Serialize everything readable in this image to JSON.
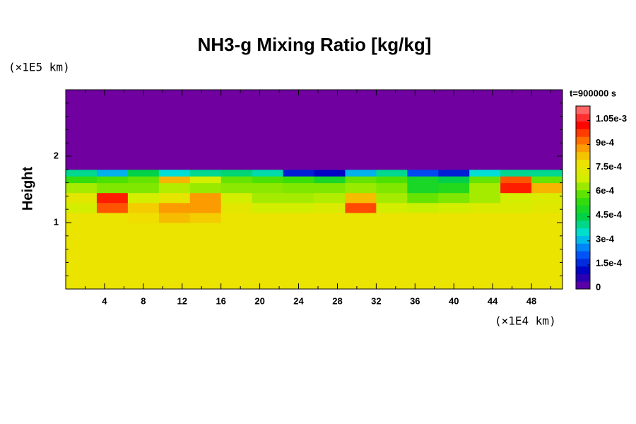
{
  "chart_data": {
    "type": "heatmap",
    "title": "NH3-g Mixing Ratio [kg/kg]",
    "y_label": "Height",
    "y_unit": "(×1E5 km)",
    "x_unit": "(×1E4 km)",
    "time_label": "t=900000 s",
    "xlim": [
      0,
      51.2
    ],
    "ylim": [
      0,
      3.0
    ],
    "xticks": [
      4,
      8,
      12,
      16,
      20,
      24,
      28,
      32,
      36,
      40,
      44,
      48
    ],
    "xminorticks": [
      2,
      6,
      10,
      14,
      18,
      22,
      26,
      30,
      34,
      38,
      42,
      46,
      50
    ],
    "yticks": [
      1,
      2
    ],
    "yminorticks": [
      0.2,
      0.4,
      0.6,
      0.8,
      1.2,
      1.4,
      1.6,
      1.8,
      2.2,
      2.4,
      2.6,
      2.8
    ],
    "x_edges": [
      0,
      3.2,
      6.4,
      9.6,
      12.8,
      16,
      19.2,
      22.4,
      25.6,
      28.8,
      32,
      35.2,
      38.4,
      41.6,
      44.8,
      48,
      51.2
    ],
    "y_edges": [
      0,
      1.0,
      1.15,
      1.3,
      1.45,
      1.6,
      1.7,
      1.8,
      3.0
    ],
    "z": [
      [
        0.00078,
        0.00078,
        0.00078,
        0.00078,
        0.00078,
        0.00078,
        0.00078,
        0.00078,
        0.00078,
        0.00078,
        0.00078,
        0.00078,
        0.00078,
        0.00078,
        0.00078,
        0.00078
      ],
      [
        0.00078,
        0.00078,
        0.0008,
        0.00084,
        0.00082,
        0.00078,
        0.00078,
        0.00078,
        0.00078,
        0.00078,
        0.00078,
        0.00078,
        0.00078,
        0.00078,
        0.00078,
        0.00078
      ],
      [
        0.0007,
        0.00095,
        0.00082,
        0.00088,
        0.00088,
        0.00075,
        0.0007,
        0.0007,
        0.00072,
        0.00096,
        0.0007,
        0.00068,
        0.0007,
        0.00072,
        0.00072,
        0.00074
      ],
      [
        0.00075,
        0.001,
        0.0007,
        0.00076,
        0.00088,
        0.0007,
        0.00065,
        0.00065,
        0.00066,
        0.00084,
        0.00065,
        0.0006,
        0.00062,
        0.00065,
        0.0007,
        0.00072
      ],
      [
        0.00065,
        0.00062,
        0.00062,
        0.00066,
        0.00064,
        0.00063,
        0.00063,
        0.00062,
        0.00062,
        0.00064,
        0.00062,
        0.0005,
        0.00052,
        0.00065,
        0.001,
        0.00085
      ],
      [
        0.00055,
        0.00058,
        0.0006,
        0.00085,
        0.0007,
        0.0006,
        0.00058,
        0.00056,
        0.0005,
        0.0006,
        0.00058,
        0.0005,
        0.00045,
        0.0006,
        0.00095,
        0.0006
      ],
      [
        0.0004,
        0.0003,
        0.00045,
        0.00035,
        0.0004,
        0.00042,
        0.00038,
        0.00015,
        0.00012,
        0.0003,
        0.0004,
        0.0002,
        0.00015,
        0.00035,
        0.0004,
        0.0004
      ],
      [
        0,
        0,
        0,
        0,
        0,
        0,
        0,
        0,
        0,
        0,
        0,
        0,
        0,
        0,
        0,
        0
      ]
    ],
    "clim": [
      0,
      0.00114
    ],
    "cticks": [
      0,
      {
        "value": 0.00015,
        "label": "1.5e-4"
      },
      {
        "value": 0.0003,
        "label": "3e-4"
      },
      {
        "value": 0.00045,
        "label": "4.5e-4"
      },
      {
        "value": 0.0006,
        "label": "6e-4"
      },
      {
        "value": 0.00075,
        "label": "7.5e-4"
      },
      {
        "value": 0.0009,
        "label": "9e-4"
      },
      {
        "value": 0.00105,
        "label": "1.05e-3"
      }
    ],
    "colormap": [
      "#7000a0",
      "#0000c0",
      "#0060ff",
      "#00e0e0",
      "#00d040",
      "#40e000",
      "#d0f000",
      "#f0e000",
      "#ff8000",
      "#ff0000",
      "#ff8080"
    ]
  }
}
